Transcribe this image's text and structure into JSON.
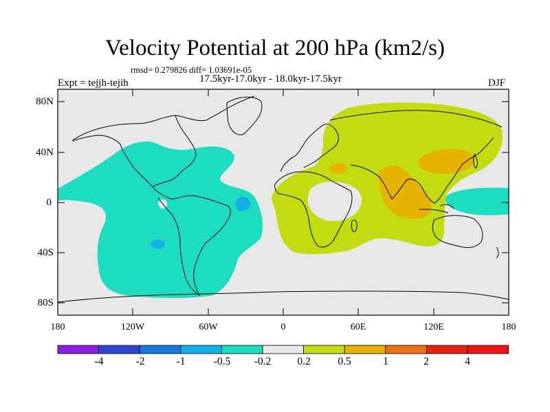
{
  "title": "Velocity Potential at 200 hPa (km2/s)",
  "stats_line": "rmsd= 0.279826 diff= 1.03691e-05",
  "left_label": "Expt = tejjh-tejih",
  "center_label": "17.5kyr-17.0kyr - 18.0kyr-17.5kyr",
  "right_label": "DJF",
  "lat_labels": [
    "80N",
    "40N",
    "0",
    "40S",
    "80S"
  ],
  "lon_labels": [
    "180",
    "120W",
    "60W",
    "0",
    "60E",
    "120E",
    "180"
  ],
  "colorbar": {
    "labels": [
      "-4",
      "-2",
      "-1",
      "-0.5",
      "-0.2",
      "0.2",
      "0.5",
      "1",
      "2",
      "4"
    ],
    "colors": [
      "#8c1ee6",
      "#2e46d6",
      "#1a78e0",
      "#14b0e8",
      "#1cddc0",
      "#e8e8e8",
      "#c2dc10",
      "#e6b400",
      "#ea6e12",
      "#e62312",
      "#f01414"
    ]
  },
  "fill_colors": {
    "background": "#e8e8e8",
    "cyan": "#1cddc0",
    "blue": "#14b0e8",
    "yellow": "#c2dc10",
    "orange": "#e6b400"
  }
}
